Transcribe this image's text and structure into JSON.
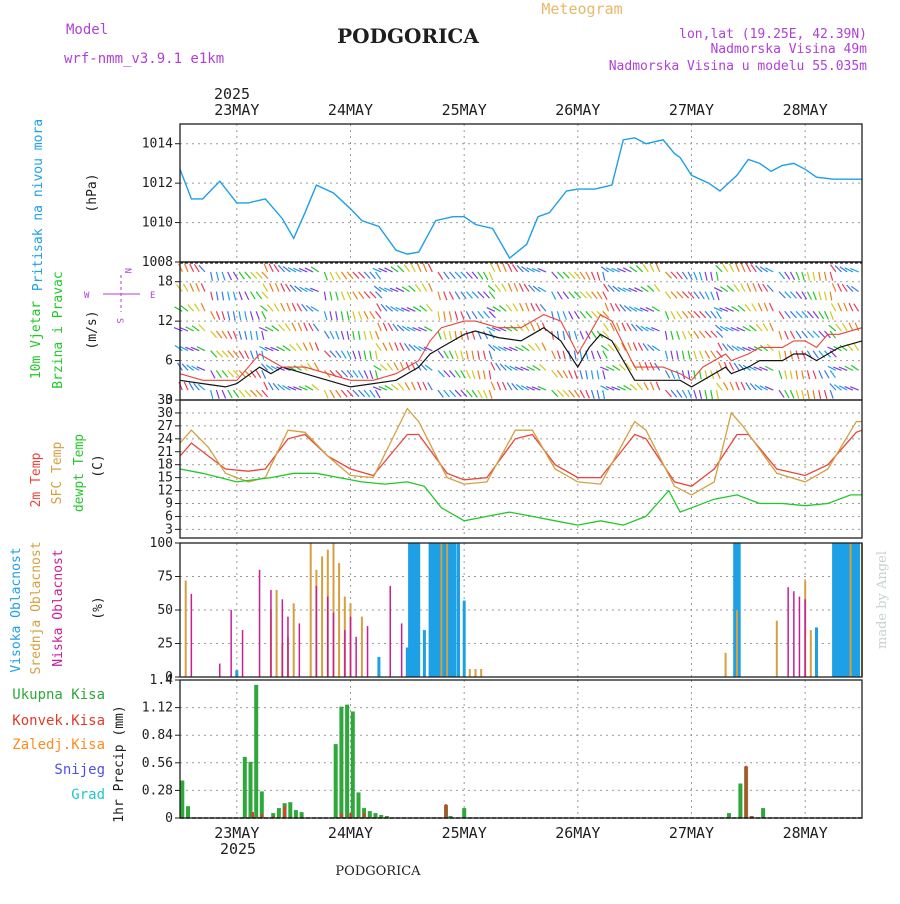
{
  "header": {
    "model_label": "Model",
    "model_name": "wrf-nmm_v3.9.1  e1km",
    "city": "PODGORICA",
    "meteogram": "Meteogram",
    "lonlat": "lon,lat (19.25E, 42.39N)",
    "altitude": "Nadmorska Visina 49m",
    "model_altitude": "Nadmorska Visina u modelu 55.035m"
  },
  "footer": {
    "city": "PODGORICA",
    "watermark": "made by Angel"
  },
  "time_axis": {
    "year": "2025",
    "day_labels": [
      "23MAY",
      "24MAY",
      "25MAY",
      "26MAY",
      "27MAY",
      "28MAY"
    ],
    "day_values": [
      1,
      2,
      3,
      4,
      5,
      6
    ],
    "range": [
      0.5,
      6.5
    ]
  },
  "colors": {
    "pressure": "#1ea0e6",
    "t2m": "#e8463c",
    "tsfc": "#d4a040",
    "dewpoint": "#22c82a",
    "high_cloud": "#1ea0e6",
    "mid_cloud": "#d4a040",
    "low_cloud": "#c81e96",
    "total_precip": "#2ea83a",
    "conv_precip": "#e23a2a",
    "freezing": "#ff8c1e",
    "snow": "#5050e6",
    "hail": "#1ec8c8",
    "gust": "#e8463c",
    "wind": "#141414",
    "axis_text": "#b040d8"
  },
  "labels": {
    "pressure": [
      "Pritisak na nivou mora",
      "(hPa)"
    ],
    "wind": [
      "10m Vjetar",
      "Brzina i Pravac",
      "(m/s)"
    ],
    "compass": {
      "n": "N",
      "s": "S",
      "e": "E",
      "w": "W"
    },
    "temp": [
      "2m Temp",
      "SFC Temp",
      "dewpt Temp",
      "(C)"
    ],
    "cloud": [
      "Visoka Oblacnost",
      "Srednja Oblacnost",
      "Niska Oblacnost",
      "(%)"
    ],
    "precip": [
      "Ukupna Kisa",
      "Konvek.Kisa",
      "Zaledj.Kisa",
      "Snijeg",
      "Grad",
      "1hr Precip (mm)"
    ]
  },
  "chart_data": [
    {
      "type": "line",
      "panel": "pressure",
      "ylabel": "(hPa)",
      "ylim": [
        1008,
        1015
      ],
      "yticks": [
        1008,
        1010,
        1012,
        1014
      ],
      "series": [
        {
          "name": "Pritisak na nivou mora",
          "x": [
            0.5,
            0.6,
            0.7,
            0.85,
            1.0,
            1.1,
            1.25,
            1.4,
            1.5,
            1.6,
            1.7,
            1.85,
            2.0,
            2.1,
            2.25,
            2.4,
            2.5,
            2.6,
            2.75,
            2.9,
            3.0,
            3.1,
            3.25,
            3.4,
            3.55,
            3.65,
            3.75,
            3.9,
            4.0,
            4.15,
            4.3,
            4.4,
            4.5,
            4.6,
            4.75,
            4.85,
            4.9,
            5.0,
            5.15,
            5.25,
            5.4,
            5.5,
            5.6,
            5.7,
            5.8,
            5.9,
            6.0,
            6.1,
            6.25,
            6.4,
            6.5
          ],
          "y": [
            1012.7,
            1011.2,
            1011.2,
            1012.1,
            1011.0,
            1011.0,
            1011.2,
            1010.2,
            1009.2,
            1010.5,
            1011.9,
            1011.5,
            1010.7,
            1010.1,
            1009.8,
            1008.6,
            1008.4,
            1008.5,
            1010.1,
            1010.3,
            1010.3,
            1009.9,
            1009.7,
            1008.2,
            1008.9,
            1010.3,
            1010.5,
            1011.6,
            1011.7,
            1011.7,
            1011.9,
            1014.2,
            1014.3,
            1014.0,
            1014.2,
            1013.5,
            1013.3,
            1012.4,
            1012.0,
            1011.6,
            1012.4,
            1013.2,
            1013.0,
            1012.6,
            1012.9,
            1013.0,
            1012.7,
            1012.3,
            1012.2,
            1012.2,
            1012.2
          ]
        }
      ]
    },
    {
      "type": "line",
      "panel": "wind",
      "ylabel": "(m/s)",
      "ylim": [
        0,
        21
      ],
      "yticks": [
        0,
        6,
        12,
        18
      ],
      "series": [
        {
          "name": "wind",
          "x": [
            0.5,
            0.7,
            0.9,
            1.0,
            1.2,
            1.3,
            1.4,
            1.6,
            1.8,
            2.0,
            2.2,
            2.4,
            2.6,
            2.7,
            2.8,
            3.0,
            3.1,
            3.3,
            3.5,
            3.6,
            3.7,
            3.85,
            4.0,
            4.1,
            4.2,
            4.3,
            4.5,
            4.6,
            4.75,
            4.9,
            5.0,
            5.1,
            5.3,
            5.35,
            5.5,
            5.6,
            5.8,
            5.9,
            6.0,
            6.1,
            6.2,
            6.3,
            6.5
          ],
          "y": [
            3,
            2.5,
            2,
            2.5,
            5,
            4,
            5,
            4,
            3,
            2,
            2.5,
            3,
            5,
            7,
            8,
            10,
            10.5,
            9.5,
            9,
            10,
            11,
            9,
            5,
            8,
            10,
            9,
            3,
            3,
            3,
            3,
            2,
            3,
            5,
            4,
            5,
            6,
            6,
            7,
            7,
            6,
            7,
            8,
            9
          ]
        },
        {
          "name": "gust",
          "x": [
            0.5,
            0.7,
            0.9,
            1.0,
            1.2,
            1.3,
            1.4,
            1.6,
            1.8,
            2.0,
            2.2,
            2.4,
            2.6,
            2.7,
            2.8,
            3.0,
            3.1,
            3.3,
            3.5,
            3.6,
            3.7,
            3.85,
            4.0,
            4.1,
            4.2,
            4.3,
            4.5,
            4.6,
            4.75,
            4.9,
            5.0,
            5.1,
            5.3,
            5.35,
            5.5,
            5.6,
            5.8,
            5.9,
            6.0,
            6.1,
            6.2,
            6.3,
            6.5
          ],
          "y": [
            4,
            3,
            3,
            3,
            7,
            6,
            5,
            5,
            4,
            3,
            3,
            4,
            6,
            9,
            11,
            12,
            12,
            11,
            11,
            12,
            13,
            12,
            7,
            10,
            13,
            12,
            5,
            5,
            5,
            4,
            3,
            5,
            7,
            6,
            7,
            8,
            8,
            9,
            9,
            8,
            10,
            10,
            11
          ]
        }
      ]
    },
    {
      "type": "line",
      "panel": "temperature",
      "ylabel": "(C)",
      "ylim": [
        1,
        33
      ],
      "yticks": [
        3,
        6,
        9,
        12,
        15,
        18,
        21,
        24,
        27,
        30,
        33
      ],
      "series": [
        {
          "name": "2m Temp",
          "x": [
            0.5,
            0.6,
            0.75,
            0.9,
            1.1,
            1.25,
            1.45,
            1.6,
            1.8,
            2.0,
            2.2,
            2.5,
            2.6,
            2.85,
            3.0,
            3.2,
            3.45,
            3.6,
            3.8,
            4.0,
            4.2,
            4.5,
            4.6,
            4.85,
            5.0,
            5.2,
            5.4,
            5.5,
            5.75,
            6.0,
            6.2,
            6.45,
            6.5
          ],
          "y": [
            20,
            23,
            20,
            17,
            16.5,
            17,
            24,
            25,
            20,
            17,
            15.5,
            25,
            25,
            16,
            14.5,
            15,
            24,
            25,
            18,
            15,
            15,
            25,
            24,
            14,
            13,
            17,
            25,
            25,
            17,
            15.5,
            18,
            25.5,
            26
          ]
        },
        {
          "name": "SFC Temp",
          "x": [
            0.5,
            0.6,
            0.75,
            0.9,
            1.1,
            1.25,
            1.45,
            1.6,
            1.8,
            2.0,
            2.2,
            2.5,
            2.6,
            2.85,
            3.0,
            3.2,
            3.45,
            3.6,
            3.8,
            4.0,
            4.2,
            4.5,
            4.6,
            4.85,
            5.0,
            5.2,
            5.35,
            5.45,
            5.75,
            6.0,
            6.2,
            6.45,
            6.5
          ],
          "y": [
            23,
            26,
            22,
            16,
            14,
            15,
            26,
            25.5,
            20,
            15.5,
            15,
            31,
            28,
            15,
            13.5,
            14,
            26,
            26,
            17,
            14,
            13.5,
            28,
            26,
            13,
            11,
            14,
            30,
            27,
            16,
            14,
            17,
            28,
            28
          ]
        },
        {
          "name": "dewpt Temp",
          "x": [
            0.5,
            0.7,
            1.0,
            1.3,
            1.5,
            1.7,
            1.9,
            2.1,
            2.3,
            2.5,
            2.65,
            2.8,
            3.0,
            3.2,
            3.4,
            3.6,
            3.8,
            4.0,
            4.2,
            4.4,
            4.6,
            4.8,
            4.9,
            5.0,
            5.2,
            5.4,
            5.6,
            5.8,
            6.0,
            6.2,
            6.4,
            6.5
          ],
          "y": [
            17,
            16,
            14,
            15,
            16,
            16,
            15,
            14,
            13.5,
            14,
            13,
            8,
            5,
            6,
            7,
            6,
            5,
            4,
            5,
            4,
            6,
            12,
            7,
            8,
            10,
            11,
            9,
            9,
            8.5,
            9,
            11,
            11
          ]
        }
      ]
    },
    {
      "type": "bar",
      "panel": "cloud",
      "ylabel": "(%)",
      "ylim": [
        0,
        100
      ],
      "yticks": [
        0,
        25,
        50,
        75,
        100
      ],
      "series": [
        {
          "name": "Visoka Oblacnost",
          "x": [
            1.0,
            2.25,
            2.5,
            2.52,
            2.54,
            2.56,
            2.58,
            2.6,
            2.65,
            2.7,
            2.72,
            2.74,
            2.76,
            2.78,
            2.8,
            2.82,
            2.84,
            2.86,
            2.88,
            2.9,
            2.92,
            2.95,
            3.0,
            5.38,
            5.4,
            5.42,
            6.1,
            6.25,
            6.27,
            6.29,
            6.31,
            6.33,
            6.35,
            6.37,
            6.39,
            6.41,
            6.43,
            6.45,
            6.47
          ],
          "y": [
            5,
            15,
            22,
            100,
            100,
            100,
            100,
            100,
            35,
            100,
            100,
            100,
            100,
            100,
            100,
            100,
            100,
            100,
            100,
            100,
            100,
            100,
            57,
            100,
            100,
            100,
            37,
            100,
            100,
            100,
            100,
            100,
            100,
            100,
            100,
            100,
            100,
            100,
            100
          ]
        },
        {
          "name": "Srednja Oblacnost",
          "x": [
            0.55,
            1.3,
            1.35,
            1.4,
            1.45,
            1.5,
            1.65,
            1.7,
            1.75,
            1.8,
            1.85,
            1.9,
            1.95,
            2.0,
            2.1,
            2.8,
            2.85,
            3.05,
            3.1,
            3.15,
            5.3,
            5.4,
            5.75,
            6.0,
            6.05,
            6.4,
            6.5
          ],
          "y": [
            72,
            50,
            65,
            25,
            30,
            55,
            100,
            80,
            90,
            95,
            100,
            85,
            60,
            55,
            45,
            100,
            100,
            6,
            6,
            6,
            18,
            50,
            42,
            72,
            35,
            100,
            100
          ]
        },
        {
          "name": "Niska Oblacnost",
          "x": [
            0.6,
            0.85,
            0.95,
            1.05,
            1.2,
            1.3,
            1.4,
            1.45,
            1.55,
            1.7,
            1.8,
            1.85,
            1.95,
            2.0,
            2.05,
            2.15,
            2.35,
            2.45,
            5.85,
            5.9,
            5.95,
            6.0
          ],
          "y": [
            62,
            10,
            50,
            35,
            80,
            65,
            58,
            45,
            40,
            68,
            60,
            48,
            35,
            45,
            30,
            38,
            68,
            40,
            67,
            64,
            60,
            58
          ]
        }
      ]
    },
    {
      "type": "bar",
      "panel": "precip",
      "ylabel": "1hr Precip (mm)",
      "ylim": [
        0,
        1.4
      ],
      "yticks": [
        0,
        0.28,
        0.56,
        0.84,
        1.12,
        1.4
      ],
      "series": [
        {
          "name": "Ukupna Kisa",
          "x": [
            0.52,
            0.57,
            1.07,
            1.12,
            1.17,
            1.22,
            1.32,
            1.37,
            1.42,
            1.47,
            1.52,
            1.57,
            1.87,
            1.92,
            1.97,
            2.02,
            2.07,
            2.12,
            2.17,
            2.22,
            2.27,
            2.32,
            2.84,
            2.88,
            3.0,
            5.33,
            5.43,
            5.48,
            5.53,
            5.63
          ],
          "y": [
            0.38,
            0.12,
            0.62,
            0.57,
            1.35,
            0.27,
            0.05,
            0.1,
            0.15,
            0.16,
            0.08,
            0.06,
            0.75,
            1.13,
            1.15,
            1.08,
            0.26,
            0.1,
            0.07,
            0.05,
            0.03,
            0.02,
            0.13,
            0.02,
            0.1,
            0.05,
            0.35,
            0.52,
            0.02,
            0.1
          ]
        },
        {
          "name": "Konvek.Kisa",
          "x": [
            1.14,
            1.22,
            1.32,
            1.42,
            1.92,
            2.0,
            2.12,
            2.84,
            5.48,
            5.53
          ],
          "y": [
            0.06,
            0.04,
            0.02,
            0.12,
            0.05,
            0.05,
            0.05,
            0.14,
            0.53,
            0.02
          ]
        }
      ]
    }
  ]
}
